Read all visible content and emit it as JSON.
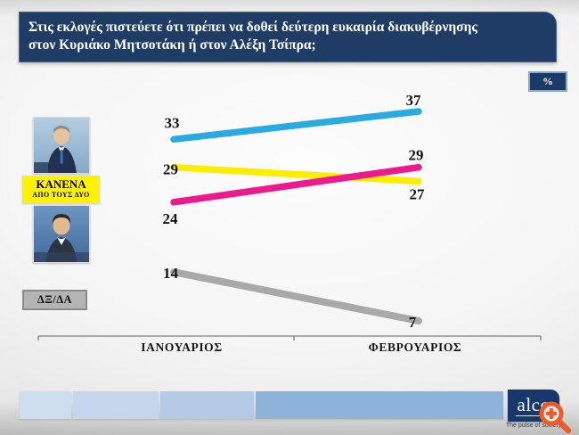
{
  "title": {
    "lines": [
      "Στις εκλογές πιστεύετε ότι πρέπει να δοθεί δεύτερη ευκαιρία διακυβέρνησης",
      "στον Κυριάκο Μητσοτάκη ή στον Αλέξη Τσίπρα;"
    ]
  },
  "unit_badge": "%",
  "legend": {
    "kanena": {
      "line1": "ΚΑΝΕΝΑ",
      "line2": "ΑΠΟ ΤΟΥΣ ΔΥΟ"
    },
    "dxda": "ΔΞ/ΔΑ"
  },
  "chart_data": {
    "type": "line",
    "subtype": "slope",
    "unit": "%",
    "categories": [
      "ΙΑΝΟΥΑΡΙΟΣ",
      "ΦΕΒΡΟΥΑΡΙΟΣ"
    ],
    "series": [
      {
        "id": "mitsotakis",
        "label": "Κυριάκος Μητσοτάκης",
        "color": "#29abe2",
        "values": [
          33,
          37
        ]
      },
      {
        "id": "kanena-apo-tous-dyo",
        "label": "ΚΑΝΕΝΑ ΑΠΟ ΤΟΥΣ ΔΥΟ",
        "color": "#fdee00",
        "values": [
          29,
          27
        ]
      },
      {
        "id": "tsipras",
        "label": "Αλέξης Τσίπρας",
        "color": "#ec1a8d",
        "values": [
          24,
          29
        ]
      },
      {
        "id": "dx-da",
        "label": "ΔΞ/ΔΑ",
        "color": "#a9a9a9",
        "values": [
          14,
          7
        ]
      }
    ],
    "value_labels_shown": true,
    "grid": false,
    "legend_position": "left-photos",
    "ylim": [
      0,
      40
    ]
  },
  "footer": {
    "bar_colors": [
      "#cfdeee",
      "#c5d7ea",
      "#b4cbe6",
      "#8db3da"
    ]
  },
  "branding": {
    "logo_text": "alco",
    "tagline": "The pulse of society",
    "logo_bg": "#17386b"
  },
  "colors": {
    "title_bg": "#1e3c64",
    "axis": "#7f7f7f",
    "value_label": "#141414"
  }
}
